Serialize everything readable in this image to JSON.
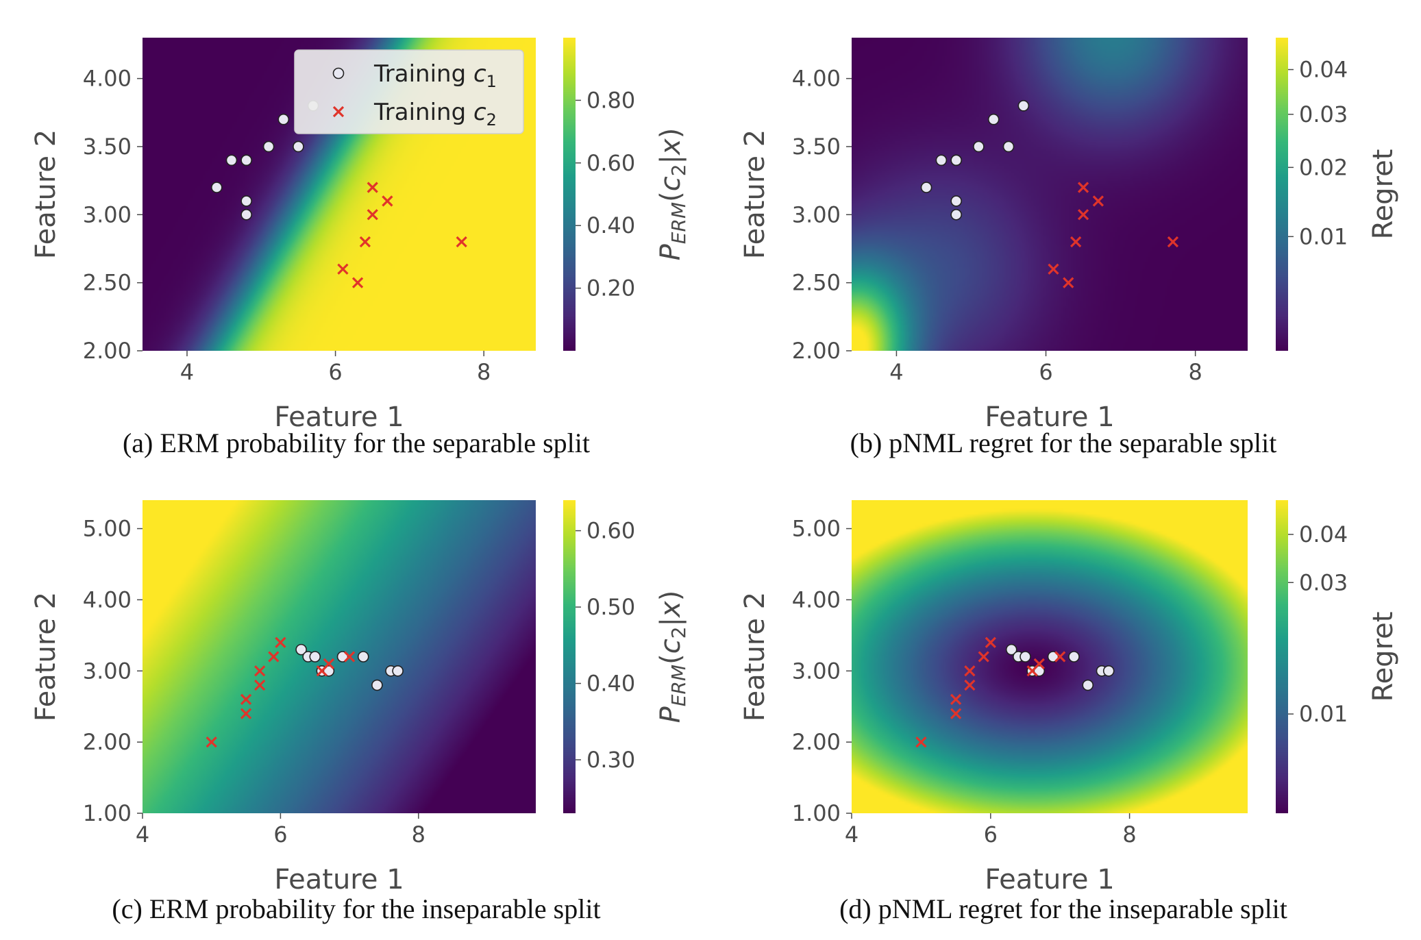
{
  "chart_data": [
    {
      "type": "heatmap",
      "panel": "a",
      "caption": "(a) ERM probability for the separable split",
      "xlabel": "Feature 1",
      "ylabel": "Feature 2",
      "colorbar_label": "P_ERM(c_2|x)",
      "colorbar_label_parts": {
        "p": "P",
        "sub1": "ERM",
        "mid": "(c",
        "sub2": "2",
        "end": "|x)"
      },
      "xlim": [
        3.4,
        8.7
      ],
      "ylim": [
        2.0,
        4.3
      ],
      "xticks": [
        "4",
        "6",
        "8"
      ],
      "xtick_values": [
        4,
        6,
        8
      ],
      "yticks": [
        "2.00",
        "2.50",
        "3.00",
        "3.50",
        "4.00"
      ],
      "ytick_values": [
        2.0,
        2.5,
        3.0,
        3.5,
        4.0
      ],
      "colorbar_range": [
        0.0,
        1.0
      ],
      "colorbar_ticks": [
        "0.20",
        "0.40",
        "0.60",
        "0.80"
      ],
      "colorbar_tick_values": [
        0.2,
        0.4,
        0.6,
        0.8
      ],
      "field": "erm_separable",
      "legend": {
        "placement": "top-right",
        "entries": [
          {
            "label": "Training c",
            "sub": "1",
            "marker": "circle"
          },
          {
            "label": "Training c",
            "sub": "2",
            "marker": "x"
          }
        ]
      },
      "series": [
        {
          "name": "Training c1",
          "marker": "circle",
          "x": [
            4.4,
            4.6,
            4.8,
            4.8,
            4.8,
            4.8,
            5.1,
            5.3,
            5.5,
            5.7
          ],
          "y": [
            3.2,
            3.4,
            3.4,
            3.1,
            3.0,
            3.4,
            3.5,
            3.7,
            3.5,
            3.8
          ]
        },
        {
          "name": "Training c2",
          "marker": "x",
          "x": [
            6.1,
            6.3,
            6.4,
            6.5,
            6.5,
            6.7,
            7.7
          ],
          "y": [
            2.6,
            2.5,
            2.8,
            3.0,
            3.2,
            3.1,
            2.8
          ]
        }
      ]
    },
    {
      "type": "heatmap",
      "panel": "b",
      "caption": "(b) pNML regret for the separable split",
      "xlabel": "Feature 1",
      "ylabel": "Feature 2",
      "colorbar_label": "Regret",
      "xlim": [
        3.4,
        8.7
      ],
      "ylim": [
        2.0,
        4.3
      ],
      "xticks": [
        "4",
        "6",
        "8"
      ],
      "xtick_values": [
        4,
        6,
        8
      ],
      "yticks": [
        "2.00",
        "2.50",
        "3.00",
        "3.50",
        "4.00"
      ],
      "ytick_values": [
        2.0,
        2.5,
        3.0,
        3.5,
        4.0
      ],
      "colorbar_scale": "log",
      "colorbar_range": [
        0.001,
        0.048
      ],
      "colorbar_ticks": [
        "0.01",
        "0.02",
        "0.03",
        "0.04"
      ],
      "colorbar_tick_values": [
        0.01,
        0.02,
        0.03,
        0.04
      ],
      "field": "regret_separable",
      "series": [
        {
          "name": "Training c1",
          "marker": "circle",
          "x": [
            4.4,
            4.6,
            4.8,
            4.8,
            4.8,
            4.8,
            5.1,
            5.3,
            5.5,
            5.7
          ],
          "y": [
            3.2,
            3.4,
            3.4,
            3.1,
            3.0,
            3.4,
            3.5,
            3.7,
            3.5,
            3.8
          ]
        },
        {
          "name": "Training c2",
          "marker": "x",
          "x": [
            6.1,
            6.3,
            6.4,
            6.5,
            6.5,
            6.7,
            7.7
          ],
          "y": [
            2.6,
            2.5,
            2.8,
            3.0,
            3.2,
            3.1,
            2.8
          ]
        }
      ]
    },
    {
      "type": "heatmap",
      "panel": "c",
      "caption": "(c) ERM probability for the inseparable split",
      "xlabel": "Feature 1",
      "ylabel": "Feature 2",
      "colorbar_label": "P_ERM(c_2|x)",
      "colorbar_label_parts": {
        "p": "P",
        "sub1": "ERM",
        "mid": "(c",
        "sub2": "2",
        "end": "|x)"
      },
      "xlim": [
        4.0,
        9.7
      ],
      "ylim": [
        1.0,
        5.4
      ],
      "xticks": [
        "4",
        "6",
        "8"
      ],
      "xtick_values": [
        4,
        6,
        8
      ],
      "yticks": [
        "1.00",
        "2.00",
        "3.00",
        "4.00",
        "5.00"
      ],
      "ytick_values": [
        1.0,
        2.0,
        3.0,
        4.0,
        5.0
      ],
      "colorbar_range": [
        0.23,
        0.64
      ],
      "colorbar_ticks": [
        "0.30",
        "0.40",
        "0.50",
        "0.60"
      ],
      "colorbar_tick_values": [
        0.3,
        0.4,
        0.5,
        0.6
      ],
      "field": "erm_inseparable",
      "series": [
        {
          "name": "Training c1",
          "marker": "circle",
          "x": [
            6.3,
            6.4,
            6.5,
            6.6,
            6.7,
            6.9,
            7.2,
            7.4,
            7.6,
            7.7
          ],
          "y": [
            3.3,
            3.2,
            3.2,
            3.0,
            3.0,
            3.2,
            3.2,
            2.8,
            3.0,
            3.0
          ]
        },
        {
          "name": "Training c2",
          "marker": "x",
          "x": [
            5.0,
            5.5,
            5.5,
            5.7,
            5.7,
            5.9,
            6.0,
            6.6,
            6.7,
            7.0
          ],
          "y": [
            2.0,
            2.4,
            2.6,
            2.8,
            3.0,
            3.2,
            3.4,
            3.0,
            3.1,
            3.2
          ]
        }
      ]
    },
    {
      "type": "heatmap",
      "panel": "d",
      "caption": "(d) pNML regret for the inseparable split",
      "xlabel": "Feature 1",
      "ylabel": "Feature 2",
      "colorbar_label": "Regret",
      "xlim": [
        4.0,
        9.7
      ],
      "ylim": [
        1.0,
        5.4
      ],
      "xticks": [
        "4",
        "6",
        "8"
      ],
      "xtick_values": [
        4,
        6,
        8
      ],
      "yticks": [
        "1.00",
        "2.00",
        "3.00",
        "4.00",
        "5.00"
      ],
      "ytick_values": [
        1.0,
        2.0,
        3.0,
        4.0,
        5.0
      ],
      "colorbar_scale": "log",
      "colorbar_range": [
        0.002,
        0.048
      ],
      "colorbar_ticks": [
        "0.01",
        "0.03",
        "0.04"
      ],
      "colorbar_tick_values": [
        0.01,
        0.03,
        0.04
      ],
      "field": "regret_inseparable",
      "series": [
        {
          "name": "Training c1",
          "marker": "circle",
          "x": [
            6.3,
            6.4,
            6.5,
            6.6,
            6.7,
            6.9,
            7.2,
            7.4,
            7.6,
            7.7
          ],
          "y": [
            3.3,
            3.2,
            3.2,
            3.0,
            3.0,
            3.2,
            3.2,
            2.8,
            3.0,
            3.0
          ]
        },
        {
          "name": "Training c2",
          "marker": "x",
          "x": [
            5.0,
            5.5,
            5.5,
            5.7,
            5.7,
            5.9,
            6.0,
            6.6,
            6.7,
            7.0
          ],
          "y": [
            2.0,
            2.4,
            2.6,
            2.8,
            3.0,
            3.2,
            3.4,
            3.0,
            3.1,
            3.2
          ]
        }
      ]
    }
  ],
  "colors": {
    "colormap": "viridis",
    "c1_fill": "#e8e8f2",
    "c1_edge": "#222222",
    "c2": "#e0342a",
    "legend_bg": "#ececec"
  }
}
